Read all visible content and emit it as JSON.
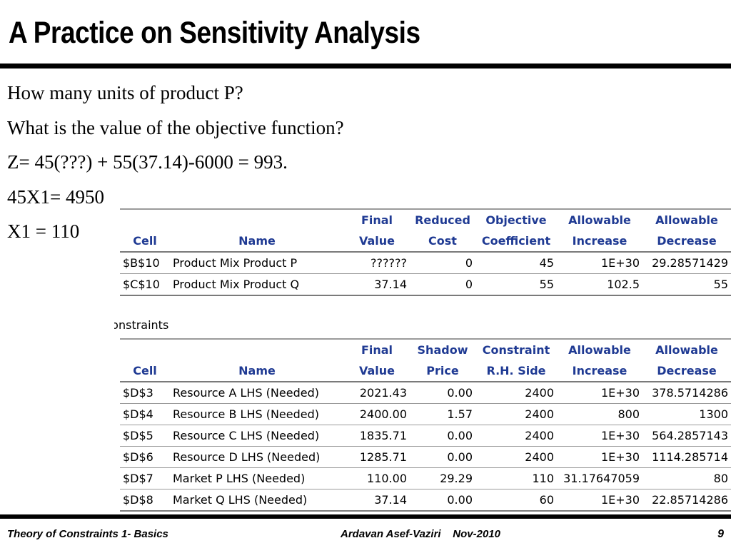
{
  "title": "A Practice on Sensitivity Analysis",
  "lines": [
    "How many units of product P?",
    "What is the value of the objective function?",
    "Z=  45(???) + 55(37.14)-6000 = 993.",
    "45X1= 4950",
    "X1 = 110"
  ],
  "adjustable_cells": {
    "header_top": [
      "",
      "",
      "Final",
      "Reduced",
      "Objective",
      "Allowable",
      "Allowable"
    ],
    "header_bottom": [
      "Cell",
      "Name",
      "Value",
      "Cost",
      "Coefficient",
      "Increase",
      "Decrease"
    ],
    "rows": [
      [
        "$B$10",
        "Product Mix Product P",
        "??????",
        "0",
        "45",
        "1E+30",
        "29.28571429"
      ],
      [
        "$C$10",
        "Product Mix Product Q",
        "37.14",
        "0",
        "55",
        "102.5",
        "55"
      ]
    ]
  },
  "constraints_label": "Constraints",
  "constraints": {
    "header_top": [
      "",
      "",
      "Final",
      "Shadow",
      "Constraint",
      "Allowable",
      "Allowable"
    ],
    "header_bottom": [
      "Cell",
      "Name",
      "Value",
      "Price",
      "R.H. Side",
      "Increase",
      "Decrease"
    ],
    "rows": [
      [
        "$D$3",
        "Resource A LHS (Needed)",
        "2021.43",
        "0.00",
        "2400",
        "1E+30",
        "378.5714286"
      ],
      [
        "$D$4",
        "Resource B LHS (Needed)",
        "2400.00",
        "1.57",
        "2400",
        "800",
        "1300"
      ],
      [
        "$D$5",
        "Resource C LHS (Needed)",
        "1835.71",
        "0.00",
        "2400",
        "1E+30",
        "564.2857143"
      ],
      [
        "$D$6",
        "Resource D LHS (Needed)",
        "1285.71",
        "0.00",
        "2400",
        "1E+30",
        "1114.285714"
      ],
      [
        "$D$7",
        "Market P LHS (Needed)",
        "110.00",
        "29.29",
        "110",
        "31.17647059",
        "80"
      ],
      [
        "$D$8",
        "Market Q LHS (Needed)",
        "37.14",
        "0.00",
        "60",
        "1E+30",
        "22.85714286"
      ]
    ]
  },
  "footer": {
    "left": "Theory of Constraints 1- Basics",
    "center": "Ardavan Asef-Vaziri    Nov-2010",
    "page": "9"
  },
  "colors": {
    "header_text": "#1f3a93",
    "rule": "#000000",
    "table_border": "#9a9a9a"
  }
}
